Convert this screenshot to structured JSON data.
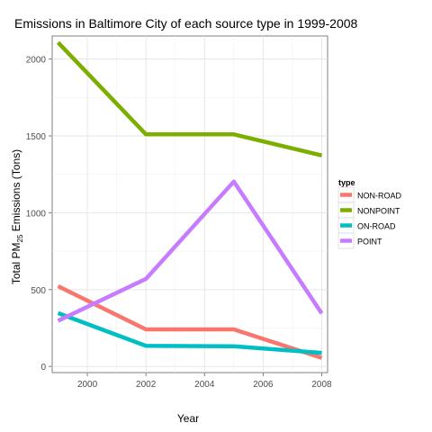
{
  "chart_data": {
    "type": "line",
    "title": "Emissions in Baltimore City of each source type in 1999-2008",
    "xlabel": "Year",
    "ylabel_prefix": "Total PM",
    "ylabel_sub": "25",
    "ylabel_suffix": " Emissions (Tons)",
    "x": [
      1999,
      2002,
      2005,
      2008
    ],
    "xlim": [
      1998.8,
      2008.2
    ],
    "ylim": [
      -40,
      2150
    ],
    "xticks": [
      2000,
      2002,
      2004,
      2006,
      2008
    ],
    "yticks": [
      0,
      500,
      1000,
      1500,
      2000
    ],
    "grid": true,
    "legend": {
      "title": "type",
      "position": "right"
    },
    "series": [
      {
        "name": "NON-ROAD",
        "color": "#F8766D",
        "values": [
          522,
          241,
          241,
          56
        ]
      },
      {
        "name": "NONPOINT",
        "color": "#7CAE00",
        "values": [
          2108,
          1510,
          1510,
          1373
        ]
      },
      {
        "name": "ON-ROAD",
        "color": "#00BFC4",
        "values": [
          347,
          134,
          131,
          88
        ]
      },
      {
        "name": "POINT",
        "color": "#C77CFF",
        "values": [
          297,
          570,
          1203,
          345
        ]
      }
    ]
  }
}
